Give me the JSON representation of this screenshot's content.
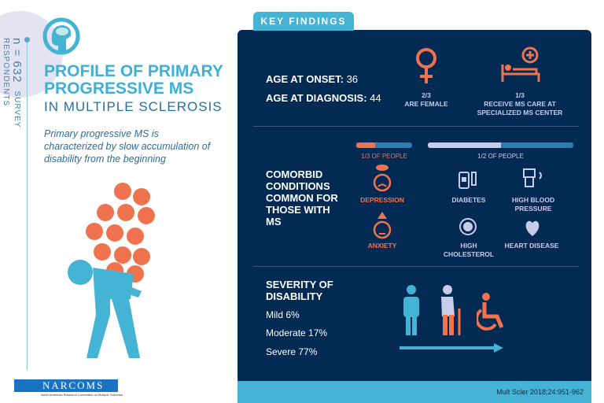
{
  "sample": {
    "n": "n = 632",
    "label": "SURVEY RESPONDENTS"
  },
  "title": {
    "line1": "PROFILE OF PRIMARY",
    "line2": "PROGRESSIVE MS",
    "subtitle": "IN MULTIPLE SCLEROSIS"
  },
  "description": "Primary progressive MS is characterized by slow accumulation of disability from the beginning",
  "key_findings": {
    "tab": "KEY FINDINGS",
    "age_onset_label": "AGE AT ONSET:",
    "age_onset": "36",
    "age_diag_label": "AGE AT DIAGNOSIS:",
    "age_diag": "44",
    "female_frac": "2/3",
    "female_label": "ARE FEMALE",
    "center_frac": "1/3",
    "center_label": "RECEIVE MS CARE AT SPECIALIZED MS CENTER",
    "comorbid_label": "COMORBID CONDITIONS COMMON FOR THOSE WITH MS",
    "bar1": {
      "label": "1/3 OF PEOPLE",
      "fraction": 0.333,
      "color": "#f0734f"
    },
    "bar2": {
      "label": "1/2 OF PEOPLE",
      "fraction": 0.5,
      "color": "#c9cbe8"
    },
    "conditions": [
      "DEPRESSION",
      "ANXIETY",
      "DIABETES",
      "HIGH BLOOD PRESSURE",
      "HIGH CHOLESTEROL",
      "HEART DISEASE"
    ],
    "severity_label": "SEVERITY OF DISABILITY",
    "severity": [
      "Mild 6%",
      "Moderate 17%",
      "Severe 77%"
    ]
  },
  "reference": "Mult Scler 2018;24:951-962",
  "logo": {
    "name": "NARCOMS",
    "sub": "North American Research Committee on Multiple Sclerosis"
  },
  "colors": {
    "navy": "#032a52",
    "blue": "#45b3d3",
    "orange": "#f0734f"
  }
}
